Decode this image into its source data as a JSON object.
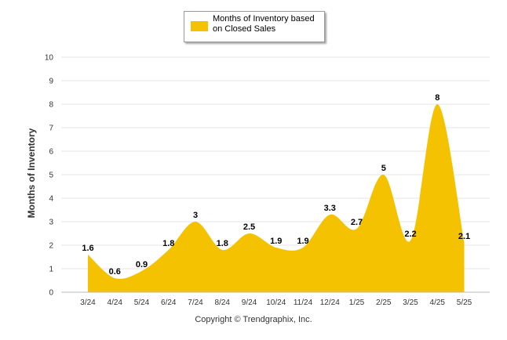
{
  "chart_data": {
    "type": "area",
    "categories": [
      "3/24",
      "4/24",
      "5/24",
      "6/24",
      "7/24",
      "8/24",
      "9/24",
      "10/24",
      "11/24",
      "12/24",
      "1/25",
      "2/25",
      "3/25",
      "4/25",
      "5/25"
    ],
    "series": [
      {
        "name": "Months of Inventory based on Closed Sales",
        "values": [
          1.6,
          0.6,
          0.9,
          1.8,
          3,
          1.8,
          2.5,
          1.9,
          1.9,
          3.3,
          2.7,
          5,
          2.2,
          8,
          2.1
        ],
        "data_labels": [
          "1.6",
          "0.6",
          "0.9",
          "1.8",
          "3",
          "1.8",
          "2.5",
          "1.9",
          "1.9",
          "3.3",
          "2.7",
          "5",
          "2.2",
          "8",
          "2.1"
        ],
        "color": "#F5C200"
      }
    ],
    "ylabel": "Months of Inventory",
    "xlabel": "",
    "ylim": [
      0,
      10
    ],
    "yticks": [
      "0",
      "1",
      "2",
      "3",
      "4",
      "5",
      "6",
      "7",
      "8",
      "9",
      "10"
    ],
    "grid": true,
    "legend_placement": "top-center"
  },
  "legend": {
    "line1": "Months of Inventory based",
    "line2": "on Closed Sales"
  },
  "footer": {
    "copyright": "Copyright © Trendgraphix, Inc."
  },
  "colors": {
    "area": "#F5C200",
    "grid": "#E6E6E6"
  }
}
